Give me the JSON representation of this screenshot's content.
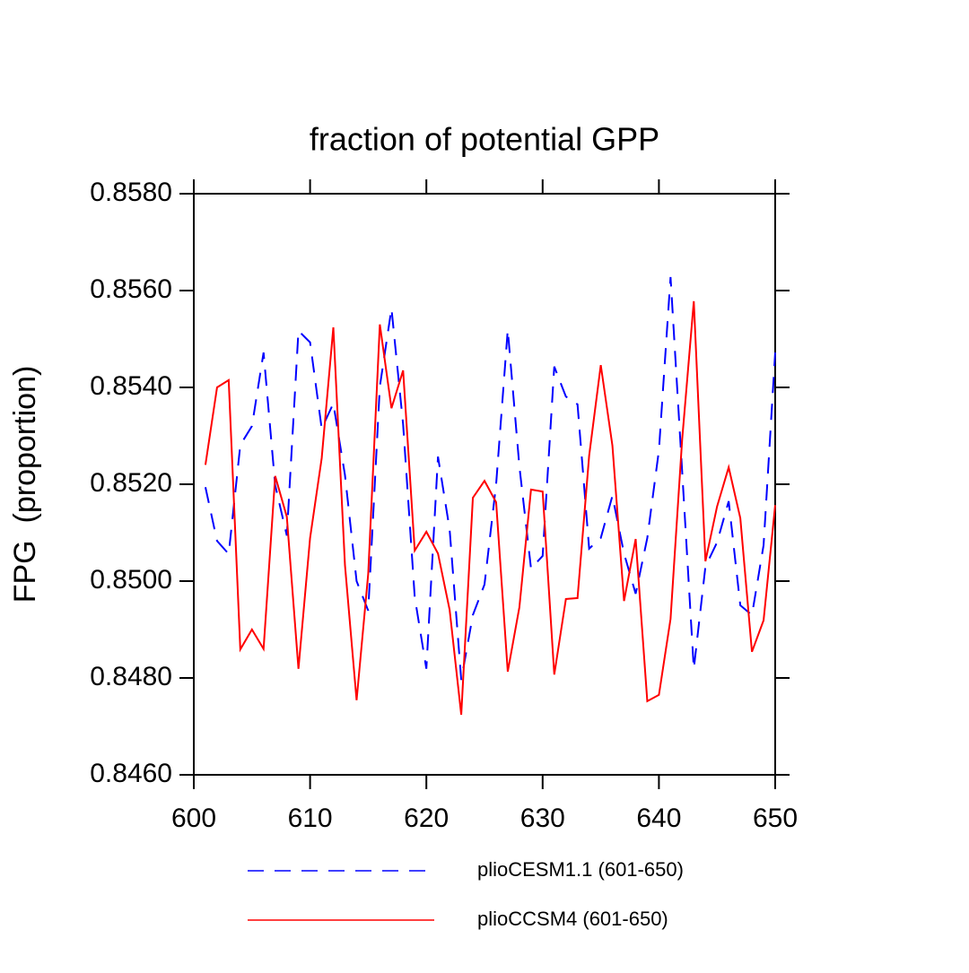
{
  "chart_data": {
    "type": "line",
    "title": "fraction of potential GPP",
    "y_label": "FPG  (proportion)",
    "x": [
      601,
      602,
      603,
      604,
      605,
      606,
      607,
      608,
      609,
      610,
      611,
      612,
      613,
      614,
      615,
      616,
      617,
      618,
      619,
      620,
      621,
      622,
      623,
      624,
      625,
      626,
      627,
      628,
      629,
      630,
      631,
      632,
      633,
      634,
      635,
      636,
      637,
      638,
      639,
      640,
      641,
      642,
      643,
      644,
      645,
      646,
      647,
      648,
      649,
      650
    ],
    "series": [
      {
        "name": "plioCESM1.1 (601-650)",
        "color": "#0000ff",
        "line_style": "dashed",
        "values": [
          0.85194,
          0.85083,
          0.85056,
          0.85281,
          0.8532,
          0.85472,
          0.85198,
          0.85094,
          0.85517,
          0.85493,
          0.85315,
          0.85367,
          0.85219,
          0.85,
          0.84939,
          0.85402,
          0.85563,
          0.85324,
          0.84967,
          0.84819,
          0.85257,
          0.85107,
          0.84796,
          0.8493,
          0.84993,
          0.852,
          0.85519,
          0.85237,
          0.85026,
          0.85052,
          0.85443,
          0.85381,
          0.85365,
          0.85067,
          0.85089,
          0.85176,
          0.85057,
          0.84974,
          0.85089,
          0.8527,
          0.85628,
          0.85226,
          0.84819,
          0.8503,
          0.8508,
          0.85165,
          0.8495,
          0.8493,
          0.85074,
          0.85472
        ]
      },
      {
        "name": "plioCCSM4 (601-650)",
        "color": "#ff0000",
        "line_style": "solid",
        "values": [
          0.8524,
          0.854,
          0.85415,
          0.84859,
          0.849,
          0.8486,
          0.85217,
          0.85133,
          0.84819,
          0.85089,
          0.85254,
          0.85524,
          0.85033,
          0.84754,
          0.85015,
          0.8553,
          0.85357,
          0.85435,
          0.85063,
          0.85102,
          0.85057,
          0.84941,
          0.84724,
          0.85172,
          0.85207,
          0.85163,
          0.84813,
          0.84946,
          0.85189,
          0.85185,
          0.84807,
          0.84963,
          0.84965,
          0.85259,
          0.85446,
          0.8528,
          0.84959,
          0.85087,
          0.84752,
          0.84765,
          0.84922,
          0.85293,
          0.85578,
          0.85041,
          0.85154,
          0.85235,
          0.8513,
          0.84854,
          0.84919,
          0.85157
        ]
      }
    ],
    "xlim": [
      600,
      650
    ],
    "xticks": [
      600,
      610,
      620,
      630,
      640,
      650
    ],
    "ylim": [
      0.846,
      0.858
    ],
    "yticks": [
      {
        "value": 0.846,
        "label": "0.8460"
      },
      {
        "value": 0.848,
        "label": "0.8480"
      },
      {
        "value": 0.85,
        "label": "0.8500"
      },
      {
        "value": 0.852,
        "label": "0.8520"
      },
      {
        "value": 0.854,
        "label": "0.8540"
      },
      {
        "value": 0.856,
        "label": "0.8560"
      },
      {
        "value": 0.858,
        "label": "0.8580"
      }
    ],
    "grid": false,
    "legend": "bottom"
  }
}
